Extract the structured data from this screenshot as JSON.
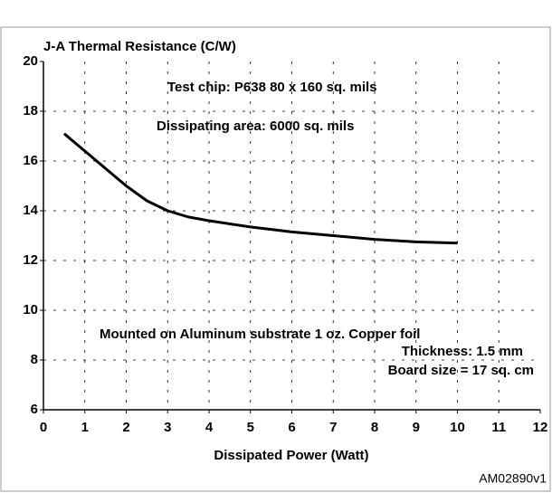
{
  "chart_data": {
    "type": "line",
    "title": "J-A Thermal Resistance (C/W)",
    "xlabel": "Dissipated Power (Watt)",
    "annotations": [
      "Test chip: P638  80 x 160 sq. mils",
      "Dissipating area: 6000 sq. mils",
      "Mounted on Aluminum substrate   1 oz. Copper foil",
      "Thickness: 1.5 mm",
      "Board size = 17 sq. cm"
    ],
    "figure_id": "AM02890v1",
    "series": [
      {
        "color": "#000000",
        "x": [
          0.5,
          1,
          1.5,
          2,
          2.5,
          3,
          3.5,
          4,
          5,
          6,
          7,
          8,
          9,
          10
        ],
        "values": [
          17.1,
          16.4,
          15.7,
          15.0,
          14.4,
          14.0,
          13.75,
          13.6,
          13.35,
          13.15,
          13.0,
          12.85,
          12.75,
          12.7
        ]
      }
    ],
    "xlim": [
      0,
      12
    ],
    "ylim": [
      6,
      20
    ],
    "xticks": [
      0,
      1,
      2,
      3,
      4,
      5,
      6,
      7,
      8,
      9,
      10,
      11,
      12
    ],
    "yticks": [
      6,
      8,
      10,
      12,
      14,
      16,
      18,
      20
    ],
    "grid": true
  }
}
